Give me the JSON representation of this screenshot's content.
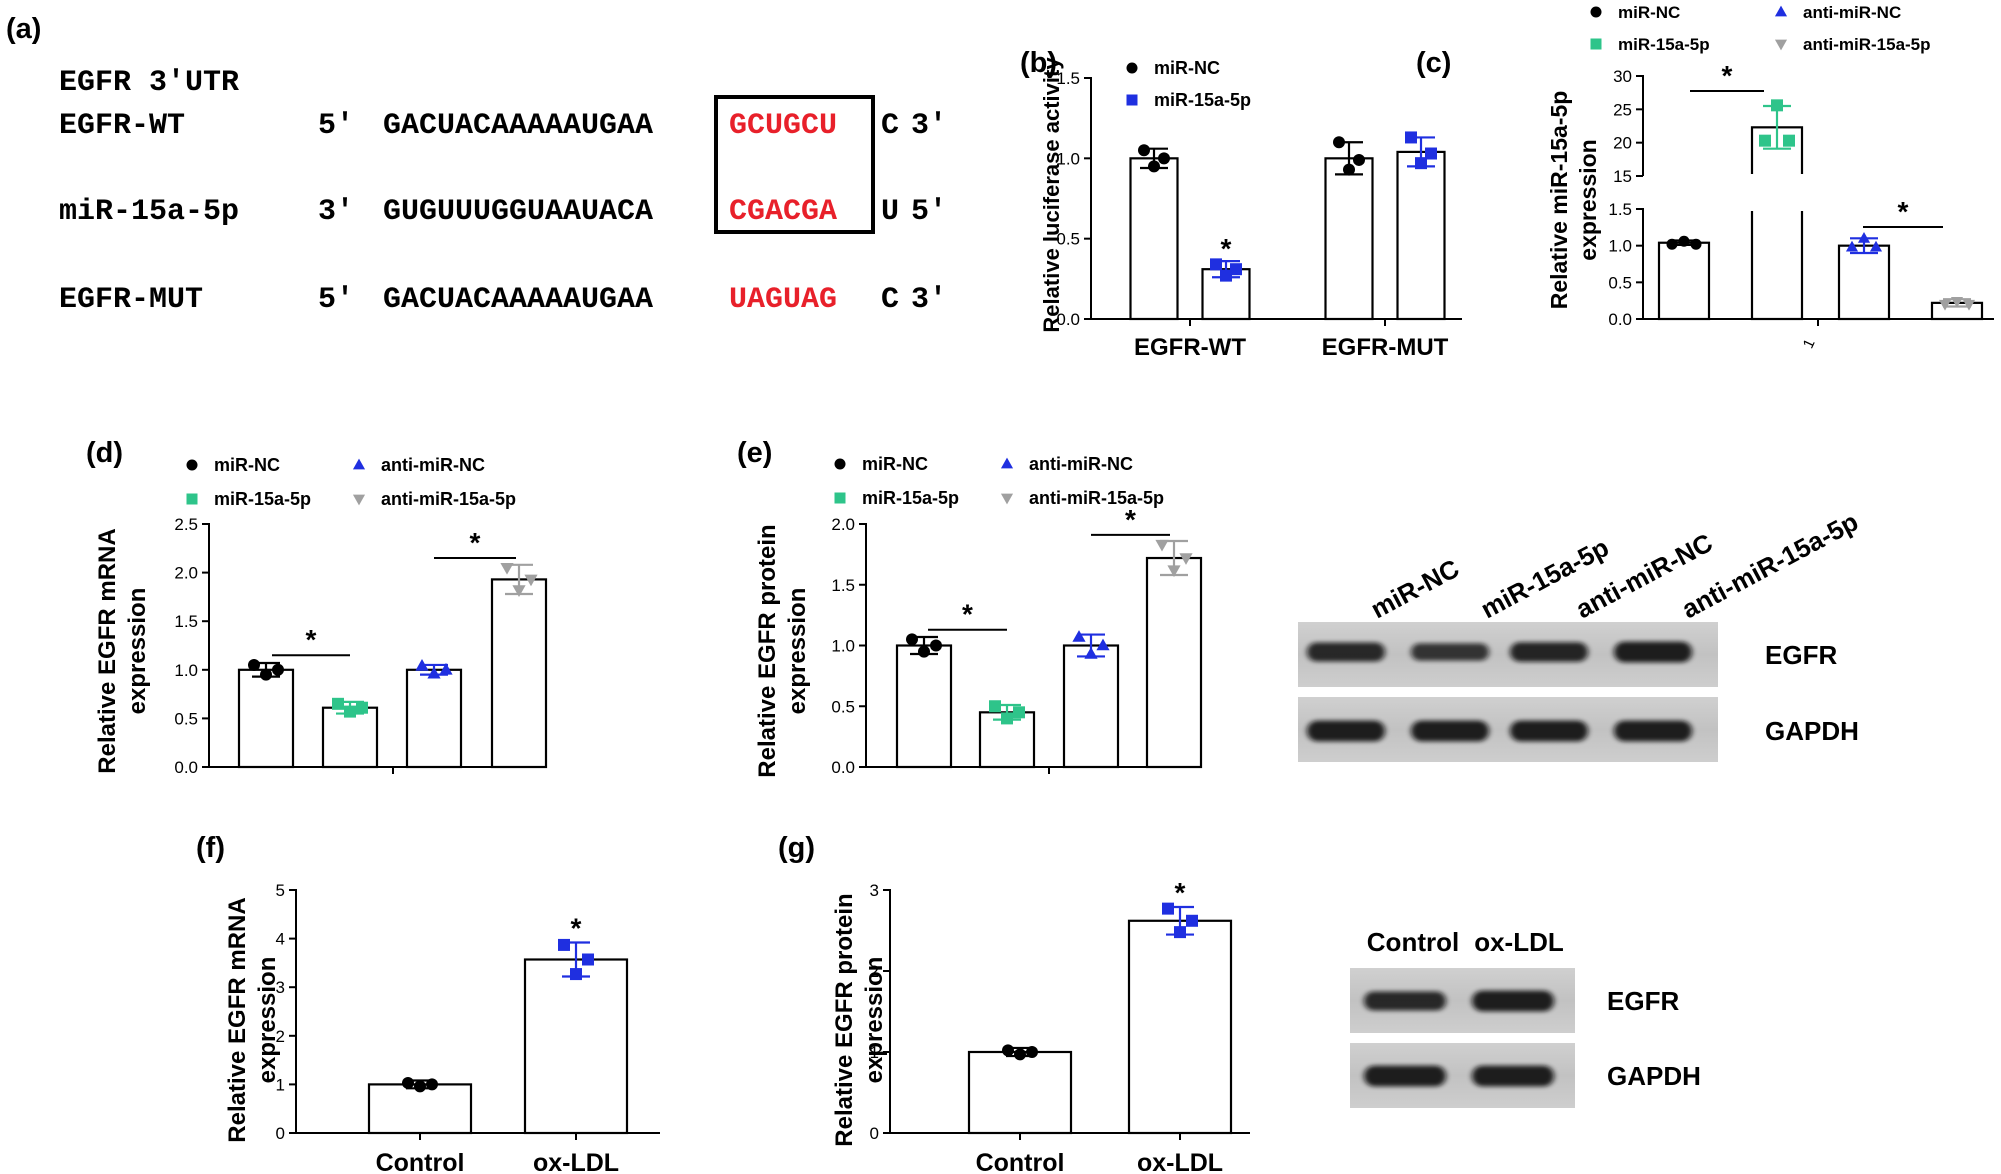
{
  "panel_labels": [
    "(a)",
    "(b)",
    "(c)",
    "(d)",
    "(e)",
    "(f)",
    "(g)"
  ],
  "sequence": {
    "heading": "EGFR 3'UTR",
    "rows": [
      {
        "name": "EGFR-WT",
        "end5": "5'",
        "prefix": "GACUACAAAAAUGAA",
        "site": "GCUGCU",
        "suffix": "C",
        "end3": "3'"
      },
      {
        "name": "miR-15a-5p",
        "end5": "3'",
        "prefix": "GUGUUUGGUAAUACA",
        "site": "CGACGA",
        "suffix": "U",
        "end3": "5'"
      },
      {
        "name": "EGFR-MUT",
        "end5": "5'",
        "prefix": "GACUACAAAAAUGAA",
        "site": "UAGUAG",
        "suffix": "C",
        "end3": "3'"
      }
    ],
    "highlight_color": "#e8202a"
  },
  "colors": {
    "black": "#000000",
    "blue": "#1f2fe0",
    "green": "#2ec48a",
    "gray": "#a0a0a0"
  },
  "chart_data": [
    {
      "id": "b",
      "type": "bar",
      "ylabel": "Relative luciferase activity",
      "categories": [
        "EGFR-WT",
        "EGFR-MUT"
      ],
      "ylim": [
        0,
        1.5
      ],
      "yticks": [
        "0.0",
        "0.5",
        "1.0",
        "1.5"
      ],
      "legend": [
        {
          "name": "miR-NC",
          "marker": "circle",
          "color": "#000000"
        },
        {
          "name": "miR-15a-5p",
          "marker": "square",
          "color": "#1f2fe0"
        }
      ],
      "bars": [
        {
          "series": 0,
          "cat": 0,
          "value": 1.0,
          "err": 0.06,
          "points": [
            1.05,
            0.95,
            1.0
          ]
        },
        {
          "series": 1,
          "cat": 0,
          "value": 0.31,
          "err": 0.05,
          "points": [
            0.34,
            0.27,
            0.31
          ]
        },
        {
          "series": 0,
          "cat": 1,
          "value": 1.0,
          "err": 0.1,
          "points": [
            1.1,
            0.93,
            0.99
          ]
        },
        {
          "series": 1,
          "cat": 1,
          "value": 1.04,
          "err": 0.09,
          "points": [
            1.13,
            0.97,
            1.03
          ]
        }
      ],
      "star": "*"
    },
    {
      "id": "c",
      "type": "bar",
      "ylabel": "Relative miR-15a-5p expression",
      "xtick": "1",
      "ylim_lower": [
        0,
        1.5
      ],
      "ylim_upper": [
        15,
        30
      ],
      "yticks_lower": [
        "0.0",
        "0.5",
        "1.0",
        "1.5"
      ],
      "yticks_upper": [
        "15",
        "20",
        "25",
        "30"
      ],
      "legend": [
        {
          "name": "miR-NC",
          "marker": "circle",
          "color": "#000000"
        },
        {
          "name": "anti-miR-NC",
          "marker": "triangle",
          "color": "#1f2fe0"
        },
        {
          "name": "miR-15a-5p",
          "marker": "square",
          "color": "#2ec48a"
        },
        {
          "name": "anti-miR-15a-5p",
          "marker": "tri-down",
          "color": "#a0a0a0"
        }
      ],
      "bars": [
        {
          "series": 0,
          "value": 1.04,
          "err": 0.03
        },
        {
          "series": 2,
          "value": 22.3,
          "err": 3.2
        },
        {
          "series": 1,
          "value": 1.0,
          "err": 0.1
        },
        {
          "series": 3,
          "value": 0.22,
          "err": 0.05
        }
      ],
      "star": "*"
    },
    {
      "id": "d",
      "type": "bar",
      "ylabel": "Relative EGFR mRNA expression",
      "ylim": [
        0,
        2.5
      ],
      "yticks": [
        "0.0",
        "0.5",
        "1.0",
        "1.5",
        "2.0",
        "2.5"
      ],
      "legend": [
        {
          "name": "miR-NC",
          "marker": "circle",
          "color": "#000000"
        },
        {
          "name": "anti-miR-NC",
          "marker": "triangle",
          "color": "#1f2fe0"
        },
        {
          "name": "miR-15a-5p",
          "marker": "square",
          "color": "#2ec48a"
        },
        {
          "name": "anti-miR-15a-5p",
          "marker": "tri-down",
          "color": "#a0a0a0"
        }
      ],
      "bars": [
        {
          "series": 0,
          "value": 1.0,
          "err": 0.07,
          "points": [
            1.05,
            0.95,
            1.0
          ]
        },
        {
          "series": 2,
          "value": 0.61,
          "err": 0.06,
          "points": [
            0.65,
            0.57,
            0.61
          ]
        },
        {
          "series": 1,
          "value": 1.0,
          "err": 0.05,
          "points": [
            1.04,
            0.96,
            1.0
          ]
        },
        {
          "series": 3,
          "value": 1.93,
          "err": 0.15,
          "points": [
            2.05,
            1.82,
            1.93
          ]
        }
      ],
      "star": "*"
    },
    {
      "id": "e",
      "type": "bar",
      "ylabel": "Relative EGFR protein expression",
      "ylim": [
        0,
        2.0
      ],
      "yticks": [
        "0.0",
        "0.5",
        "1.0",
        "1.5",
        "2.0"
      ],
      "legend": [
        {
          "name": "miR-NC",
          "marker": "circle",
          "color": "#000000"
        },
        {
          "name": "anti-miR-NC",
          "marker": "triangle",
          "color": "#1f2fe0"
        },
        {
          "name": "miR-15a-5p",
          "marker": "square",
          "color": "#2ec48a"
        },
        {
          "name": "anti-miR-15a-5p",
          "marker": "tri-down",
          "color": "#a0a0a0"
        }
      ],
      "bars": [
        {
          "series": 0,
          "value": 1.0,
          "err": 0.07,
          "points": [
            1.05,
            0.95,
            1.0
          ]
        },
        {
          "series": 2,
          "value": 0.45,
          "err": 0.06,
          "points": [
            0.5,
            0.4,
            0.45
          ]
        },
        {
          "series": 1,
          "value": 1.0,
          "err": 0.09,
          "points": [
            1.07,
            0.93,
            1.0
          ]
        },
        {
          "series": 3,
          "value": 1.72,
          "err": 0.14,
          "points": [
            1.83,
            1.62,
            1.72
          ]
        }
      ],
      "star": "*"
    },
    {
      "id": "f",
      "type": "bar",
      "ylabel": "Relative EGFR mRNA expression",
      "categories": [
        "Control",
        "ox-LDL"
      ],
      "ylim": [
        0,
        5
      ],
      "yticks": [
        "0",
        "1",
        "2",
        "3",
        "4",
        "5"
      ],
      "bars": [
        {
          "color": "#000000",
          "marker": "circle",
          "value": 1.0,
          "err": 0.08,
          "points": [
            1.03,
            0.96,
            1.0
          ]
        },
        {
          "color": "#1f2fe0",
          "marker": "square",
          "value": 3.57,
          "err": 0.35,
          "points": [
            3.87,
            3.27,
            3.57
          ]
        }
      ],
      "star": "*"
    },
    {
      "id": "g",
      "type": "bar",
      "ylabel": "Relative EGFR protein expression",
      "categories": [
        "Control",
        "ox-LDL"
      ],
      "ylim": [
        0,
        3
      ],
      "yticks": [
        "0",
        "1",
        "2",
        "3"
      ],
      "bars": [
        {
          "color": "#000000",
          "marker": "circle",
          "value": 1.0,
          "err": 0.05,
          "points": [
            1.02,
            0.97,
            1.0
          ]
        },
        {
          "color": "#1f2fe0",
          "marker": "square",
          "value": 2.62,
          "err": 0.17,
          "points": [
            2.77,
            2.48,
            2.62
          ]
        }
      ],
      "star": "*"
    }
  ],
  "western_e": {
    "lanes": [
      "miR-NC",
      "miR-15a-5p",
      "anti-miR-NC",
      "anti-miR-15a-5p"
    ],
    "bands": [
      "EGFR",
      "GAPDH"
    ],
    "intensity": {
      "EGFR": [
        0.75,
        0.6,
        0.8,
        0.9
      ],
      "GAPDH": [
        0.9,
        0.9,
        0.9,
        0.9
      ]
    }
  },
  "western_g": {
    "lanes": [
      "Control",
      "ox-LDL"
    ],
    "bands": [
      "EGFR",
      "GAPDH"
    ],
    "intensity": {
      "EGFR": [
        0.75,
        0.9
      ],
      "GAPDH": [
        0.9,
        0.9
      ]
    }
  }
}
